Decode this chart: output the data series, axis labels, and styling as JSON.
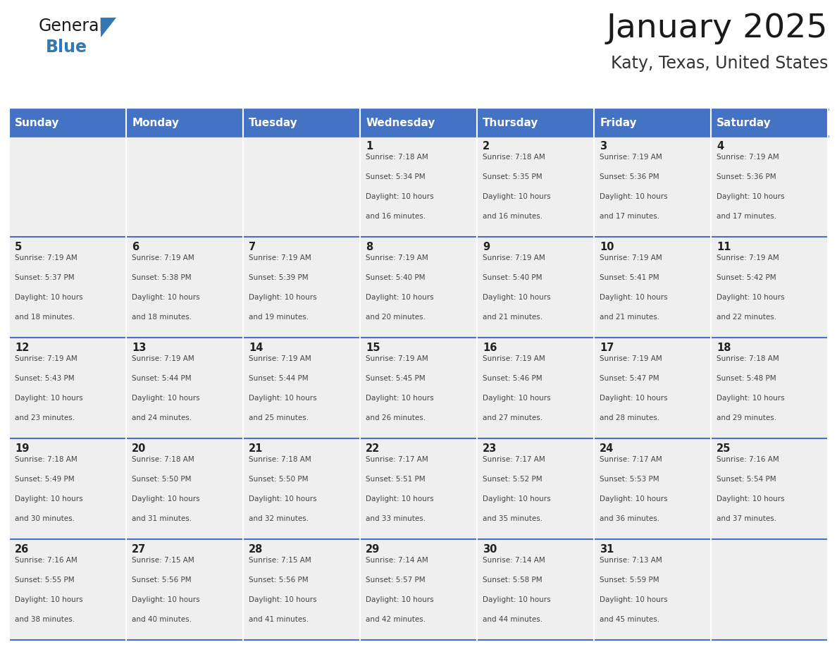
{
  "title": "January 2025",
  "subtitle": "Katy, Texas, United States",
  "days_of_week": [
    "Sunday",
    "Monday",
    "Tuesday",
    "Wednesday",
    "Thursday",
    "Friday",
    "Saturday"
  ],
  "header_bg": "#4472C4",
  "header_text": "#FFFFFF",
  "cell_bg_light": "#EFEFEF",
  "grid_color": "#4472C4",
  "title_color": "#1a1a1a",
  "subtitle_color": "#333333",
  "logo_general_color": "#1a1a1a",
  "logo_blue_color": "#3278B4",
  "calendar_data": [
    [
      null,
      null,
      null,
      {
        "day": 1,
        "sunrise": "7:18 AM",
        "sunset": "5:34 PM",
        "daylight": "10 hours and 16 minutes."
      },
      {
        "day": 2,
        "sunrise": "7:18 AM",
        "sunset": "5:35 PM",
        "daylight": "10 hours and 16 minutes."
      },
      {
        "day": 3,
        "sunrise": "7:19 AM",
        "sunset": "5:36 PM",
        "daylight": "10 hours and 17 minutes."
      },
      {
        "day": 4,
        "sunrise": "7:19 AM",
        "sunset": "5:36 PM",
        "daylight": "10 hours and 17 minutes."
      }
    ],
    [
      {
        "day": 5,
        "sunrise": "7:19 AM",
        "sunset": "5:37 PM",
        "daylight": "10 hours and 18 minutes."
      },
      {
        "day": 6,
        "sunrise": "7:19 AM",
        "sunset": "5:38 PM",
        "daylight": "10 hours and 18 minutes."
      },
      {
        "day": 7,
        "sunrise": "7:19 AM",
        "sunset": "5:39 PM",
        "daylight": "10 hours and 19 minutes."
      },
      {
        "day": 8,
        "sunrise": "7:19 AM",
        "sunset": "5:40 PM",
        "daylight": "10 hours and 20 minutes."
      },
      {
        "day": 9,
        "sunrise": "7:19 AM",
        "sunset": "5:40 PM",
        "daylight": "10 hours and 21 minutes."
      },
      {
        "day": 10,
        "sunrise": "7:19 AM",
        "sunset": "5:41 PM",
        "daylight": "10 hours and 21 minutes."
      },
      {
        "day": 11,
        "sunrise": "7:19 AM",
        "sunset": "5:42 PM",
        "daylight": "10 hours and 22 minutes."
      }
    ],
    [
      {
        "day": 12,
        "sunrise": "7:19 AM",
        "sunset": "5:43 PM",
        "daylight": "10 hours and 23 minutes."
      },
      {
        "day": 13,
        "sunrise": "7:19 AM",
        "sunset": "5:44 PM",
        "daylight": "10 hours and 24 minutes."
      },
      {
        "day": 14,
        "sunrise": "7:19 AM",
        "sunset": "5:44 PM",
        "daylight": "10 hours and 25 minutes."
      },
      {
        "day": 15,
        "sunrise": "7:19 AM",
        "sunset": "5:45 PM",
        "daylight": "10 hours and 26 minutes."
      },
      {
        "day": 16,
        "sunrise": "7:19 AM",
        "sunset": "5:46 PM",
        "daylight": "10 hours and 27 minutes."
      },
      {
        "day": 17,
        "sunrise": "7:19 AM",
        "sunset": "5:47 PM",
        "daylight": "10 hours and 28 minutes."
      },
      {
        "day": 18,
        "sunrise": "7:18 AM",
        "sunset": "5:48 PM",
        "daylight": "10 hours and 29 minutes."
      }
    ],
    [
      {
        "day": 19,
        "sunrise": "7:18 AM",
        "sunset": "5:49 PM",
        "daylight": "10 hours and 30 minutes."
      },
      {
        "day": 20,
        "sunrise": "7:18 AM",
        "sunset": "5:50 PM",
        "daylight": "10 hours and 31 minutes."
      },
      {
        "day": 21,
        "sunrise": "7:18 AM",
        "sunset": "5:50 PM",
        "daylight": "10 hours and 32 minutes."
      },
      {
        "day": 22,
        "sunrise": "7:17 AM",
        "sunset": "5:51 PM",
        "daylight": "10 hours and 33 minutes."
      },
      {
        "day": 23,
        "sunrise": "7:17 AM",
        "sunset": "5:52 PM",
        "daylight": "10 hours and 35 minutes."
      },
      {
        "day": 24,
        "sunrise": "7:17 AM",
        "sunset": "5:53 PM",
        "daylight": "10 hours and 36 minutes."
      },
      {
        "day": 25,
        "sunrise": "7:16 AM",
        "sunset": "5:54 PM",
        "daylight": "10 hours and 37 minutes."
      }
    ],
    [
      {
        "day": 26,
        "sunrise": "7:16 AM",
        "sunset": "5:55 PM",
        "daylight": "10 hours and 38 minutes."
      },
      {
        "day": 27,
        "sunrise": "7:15 AM",
        "sunset": "5:56 PM",
        "daylight": "10 hours and 40 minutes."
      },
      {
        "day": 28,
        "sunrise": "7:15 AM",
        "sunset": "5:56 PM",
        "daylight": "10 hours and 41 minutes."
      },
      {
        "day": 29,
        "sunrise": "7:14 AM",
        "sunset": "5:57 PM",
        "daylight": "10 hours and 42 minutes."
      },
      {
        "day": 30,
        "sunrise": "7:14 AM",
        "sunset": "5:58 PM",
        "daylight": "10 hours and 44 minutes."
      },
      {
        "day": 31,
        "sunrise": "7:13 AM",
        "sunset": "5:59 PM",
        "daylight": "10 hours and 45 minutes."
      },
      null
    ]
  ],
  "figsize": [
    11.88,
    9.18
  ],
  "dpi": 100
}
